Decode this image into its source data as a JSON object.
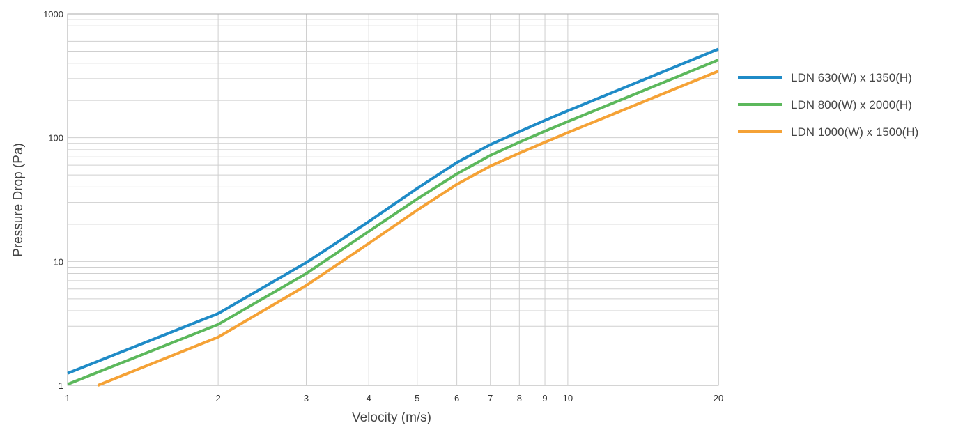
{
  "chart_data": {
    "type": "line",
    "title": "",
    "xlabel": "Velocity (m/s)",
    "ylabel": "Pressure Drop (Pa)",
    "x_scale": "log",
    "y_scale": "log",
    "xlim": [
      1,
      20
    ],
    "ylim": [
      1,
      1000
    ],
    "x_ticks": [
      1,
      2,
      3,
      4,
      5,
      6,
      7,
      8,
      9,
      10,
      20
    ],
    "x_tick_labels": [
      "1",
      "2",
      "3",
      "4",
      "5",
      "6",
      "7",
      "8",
      "9",
      "10",
      "20"
    ],
    "y_ticks": [
      1,
      10,
      100,
      1000
    ],
    "y_tick_labels": [
      "1",
      "10",
      "100",
      "1000"
    ],
    "grid": true,
    "legend_position": "right",
    "series": [
      {
        "name": "LDN 630(W) x 1350(H)",
        "color": "#1f8bc7",
        "x": [
          1,
          2,
          3,
          4,
          5,
          6,
          7,
          8,
          9,
          10,
          20
        ],
        "y": [
          1.25,
          3.8,
          9.8,
          21,
          39,
          63,
          88,
          112,
          138,
          165,
          520
        ]
      },
      {
        "name": "LDN 800(W) x 2000(H)",
        "color": "#5cb85c",
        "x": [
          1,
          2,
          3,
          4,
          5,
          6,
          7,
          8,
          9,
          10,
          20
        ],
        "y": [
          1.02,
          3.1,
          8,
          17.5,
          32,
          51,
          72,
          92,
          113,
          135,
          425
        ]
      },
      {
        "name": "LDN 1000(W) x 1500(H)",
        "color": "#f5a236",
        "x": [
          1.15,
          2,
          3,
          4,
          5,
          6,
          7,
          8,
          9,
          10,
          20
        ],
        "y": [
          1,
          2.45,
          6.4,
          14,
          26,
          42,
          59,
          75,
          92,
          110,
          345
        ]
      }
    ]
  }
}
